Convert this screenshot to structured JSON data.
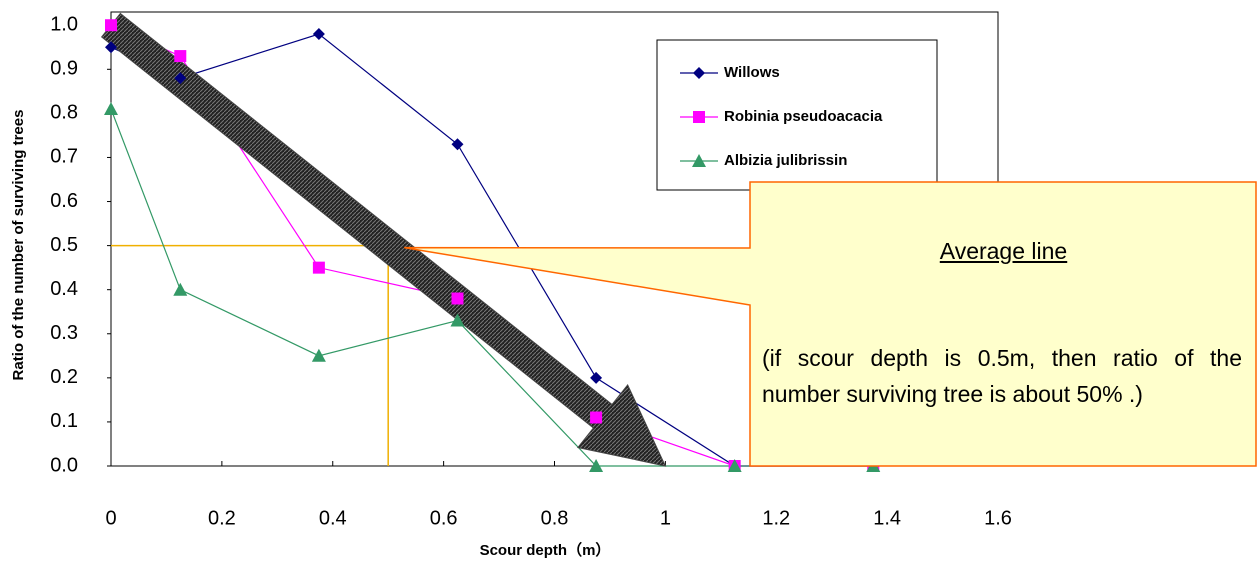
{
  "chart_data": {
    "type": "line",
    "x_label": "Scour depth（m）",
    "y_label": "Ratio of the number of surviving trees",
    "x": [
      0,
      0.125,
      0.375,
      0.625,
      0.875,
      1.125,
      1.375
    ],
    "series": [
      {
        "name": "Willows",
        "color": "#000080",
        "marker": "diamond",
        "values": [
          0.95,
          0.88,
          0.98,
          0.73,
          0.2,
          0,
          0
        ]
      },
      {
        "name": "Robinia pseudoacacia",
        "color": "#ff00ff",
        "marker": "square",
        "values": [
          1.0,
          0.93,
          0.45,
          0.38,
          0.11,
          0,
          0
        ]
      },
      {
        "name": "Albizia julibrissin",
        "color": "#339966",
        "marker": "triangle",
        "values": [
          0.81,
          0.4,
          0.25,
          0.33,
          0,
          0,
          0
        ]
      }
    ],
    "xlim": [
      0,
      1.6
    ],
    "xticks": [
      0,
      0.2,
      0.4,
      0.6,
      0.8,
      1,
      1.2,
      1.4,
      1.6
    ],
    "ylim": [
      0,
      1.03
    ],
    "yticks": [
      {
        "value": 0,
        "label": "0.0"
      },
      0.1,
      0.2,
      0.3,
      0.4,
      0.5,
      0.6,
      0.7,
      0.8,
      0.9,
      {
        "value": 1,
        "label": "1.0"
      }
    ],
    "legend": "upper right",
    "average_line": {
      "color": "#f0b000",
      "x": 0.5,
      "y": 0.5
    },
    "trend_arrow": {
      "from": [
        0,
        1
      ],
      "to": [
        1,
        0
      ]
    },
    "annotation": {
      "title": "Average line",
      "text": "(if scour depth is 0.5m, then ratio of the number surviving tree is about 50% .)"
    }
  }
}
